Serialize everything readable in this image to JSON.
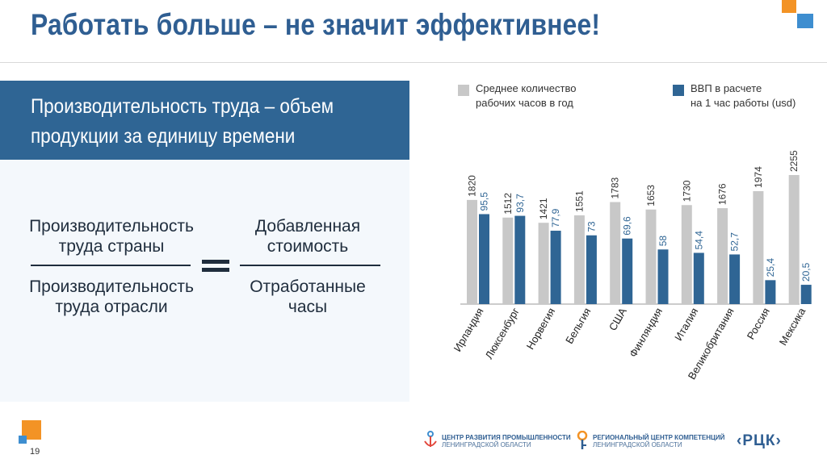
{
  "header": {
    "title": "Работать больше – не значит эффективнее!"
  },
  "definition": {
    "line1": "Производительность труда – объем",
    "line2": "продукции за единицу времени"
  },
  "formula": {
    "left_numerator_1": "Производительность",
    "left_numerator_2": "труда страны",
    "left_denominator_1": "Производительность",
    "left_denominator_2": "труда отрасли",
    "right_numerator_1": "Добавленная",
    "right_numerator_2": "стоимость",
    "right_denominator_1": "Отработанные",
    "right_denominator_2": "часы"
  },
  "footer": {
    "page_number": "19",
    "logo1_line1": "ЦЕНТР РАЗВИТИЯ ПРОМЫШЛЕННОСТИ",
    "logo1_line2": "ЛЕНИНГРАДСКОЙ ОБЛАСТИ",
    "logo2_line1": "РЕГИОНАЛЬНЫЙ ЦЕНТР КОМПЕТЕНЦИЙ",
    "logo2_line2": "ЛЕНИНГРАДСКОЙ ОБЛАСТИ",
    "logo3_text": "‹РЦК›"
  },
  "colors": {
    "title": "#2f5e92",
    "hours_series": "#c8c8c8",
    "gdp_series": "#2f6594",
    "accent_orange": "#f39325",
    "accent_blue": "#3e8ed0"
  },
  "chart_data": {
    "type": "bar",
    "categories": [
      "Ирландия",
      "Люксенбург",
      "Норвегия",
      "Бельгия",
      "США",
      "Финляндия",
      "Италия",
      "Великобритания",
      "Россия",
      "Мексика"
    ],
    "series": [
      {
        "name_line1": "Среднее количество",
        "name_line2": "рабочих часов в год",
        "values": [
          1820,
          1512,
          1421,
          1551,
          1783,
          1653,
          1730,
          1676,
          1974,
          2255
        ],
        "labels": [
          "1820",
          "1512",
          "1421",
          "1551",
          "1783",
          "1653",
          "1730",
          "1676",
          "1974",
          "2255"
        ],
        "max": 2255
      },
      {
        "name_line1": "ВВП в расчете",
        "name_line2": "на 1 час работы (usd)",
        "values": [
          95.5,
          93.7,
          77.9,
          73,
          69.6,
          58,
          54.4,
          52.7,
          25.4,
          20.5
        ],
        "labels": [
          "95,5",
          "93,7",
          "77,9",
          "73",
          "69,6",
          "58",
          "54,4",
          "52,7",
          "25,4",
          "20,5"
        ],
        "max": 137
      }
    ],
    "title": "",
    "xlabel": "",
    "ylabel": "",
    "legend": "top",
    "grid": false
  }
}
